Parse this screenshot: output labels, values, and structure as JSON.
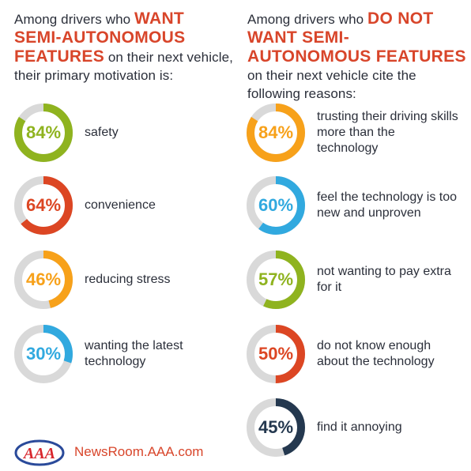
{
  "headings": {
    "left": {
      "pre": "Among drivers who ",
      "em": "WANT SEMI-AUTONOMOUS FEATURES",
      "post": " on their next vehicle, their primary motivation is:"
    },
    "right": {
      "pre": "Among drivers who ",
      "em": "DO NOT WANT SEMI-AUTONOMOUS FEATURES",
      "post": " on their next vehicle cite the following reasons:"
    }
  },
  "colors": {
    "green": "#8fb31f",
    "red": "#dc4623",
    "orange": "#f7a11a",
    "blue": "#31a9df",
    "navy": "#24384f",
    "track": "#d9d9d9"
  },
  "chart_data": [
    {
      "type": "donut",
      "group": "WANT",
      "categories": [
        "safety",
        "convenience",
        "reducing stress",
        "wanting the latest technology"
      ],
      "values": [
        84,
        64,
        46,
        30
      ],
      "value_labels": [
        "84%",
        "64%",
        "46%",
        "30%"
      ],
      "colors": [
        "#8fb31f",
        "#dc4623",
        "#f7a11a",
        "#31a9df"
      ],
      "unit": "%"
    },
    {
      "type": "donut",
      "group": "DO NOT WANT",
      "categories": [
        "trusting their driving skills more than the technology",
        "feel the technology is too new and unproven",
        "not wanting to pay extra for it",
        "do not know enough about the technology",
        "find it annoying"
      ],
      "values": [
        84,
        60,
        57,
        50,
        45
      ],
      "value_labels": [
        "84%",
        "60%",
        "57%",
        "50%",
        "45%"
      ],
      "colors": [
        "#f7a11a",
        "#31a9df",
        "#8fb31f",
        "#dc4623",
        "#24384f"
      ],
      "unit": "%"
    }
  ],
  "footer": {
    "logo_text": "AAA",
    "url": "NewsRoom.AAA.com"
  }
}
